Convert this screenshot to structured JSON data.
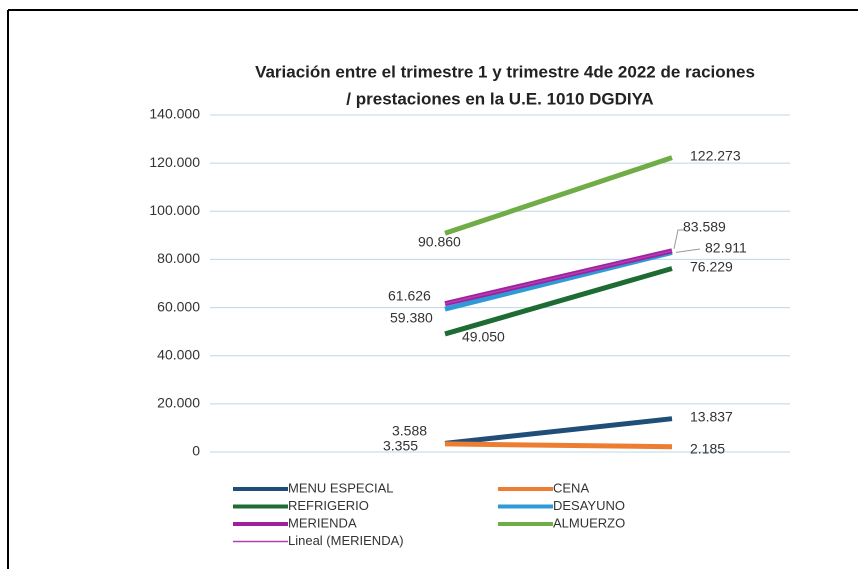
{
  "chart_data": {
    "type": "line",
    "title": "Variación  entre el trimestre 1 y trimestre 4de 2022 de raciones",
    "subtitle": "/ prestaciones en la U.E. 1010 DGDIYA",
    "categories": [
      null,
      null
    ],
    "ylim": [
      0,
      140000
    ],
    "yticks": [
      0,
      {
        "value": 20000,
        "label": "20.000"
      },
      {
        "value": 40000,
        "label": "40.000"
      },
      {
        "value": 60000,
        "label": "60.000"
      },
      {
        "value": 80000,
        "label": "80.000"
      },
      {
        "value": 100000,
        "label": "100.000"
      },
      {
        "value": 120000,
        "label": "120.000"
      },
      {
        "value": 140000,
        "label": "140.000"
      }
    ],
    "grid": true,
    "series": [
      {
        "name": "MENU ESPECIAL",
        "color": "#1f4e79",
        "values": [
          3588,
          13837
        ],
        "value_labels": [
          "3.588",
          "13.837"
        ]
      },
      {
        "name": "CENA",
        "color": "#ed7d31",
        "values": [
          3355,
          2185
        ],
        "value_labels": [
          "3.355",
          "2.185"
        ]
      },
      {
        "name": "REFRIGERIO",
        "color": "#1e6b34",
        "values": [
          49050,
          76229
        ],
        "value_labels": [
          "49.050",
          "76.229"
        ]
      },
      {
        "name": "DESAYUNO",
        "color": "#2e9bd6",
        "values": [
          59380,
          82911
        ],
        "value_labels": [
          "59.380",
          "82.911"
        ]
      },
      {
        "name": "MERIENDA",
        "color": "#a020a0",
        "values": [
          61626,
          83589
        ],
        "value_labels": [
          "61.626",
          "83.589"
        ]
      },
      {
        "name": "ALMUERZO",
        "color": "#70ad47",
        "values": [
          90860,
          122273
        ],
        "value_labels": [
          "90.860",
          "122.273"
        ]
      },
      {
        "name": "Lineal (MERIENDA)",
        "color": "#b040b0",
        "values": [
          61626,
          83589
        ],
        "trendline": true
      }
    ]
  }
}
